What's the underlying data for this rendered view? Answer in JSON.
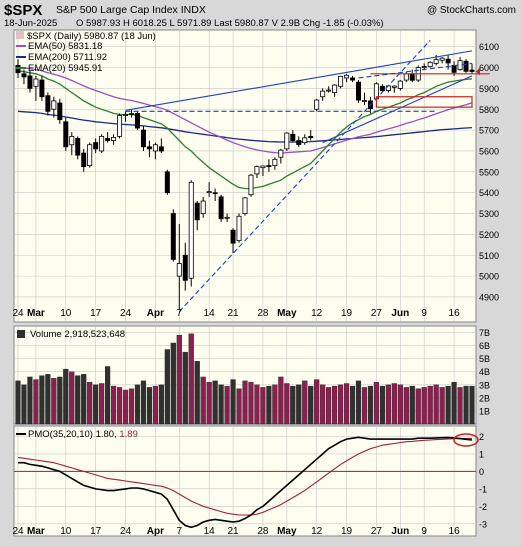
{
  "header": {
    "symbol": "$SPX",
    "name": "S&P 500 Large Cap Index",
    "exchange": "INDX",
    "watermark": "@ StockCharts.com",
    "date": "18-Jun-2025",
    "quote": "O 5987.93  H 6018.25  L 5971.89  Last 5980.87  V 2.9B  Chg -1.85 (-0.03%)"
  },
  "colors": {
    "bg": "#fdfdf0",
    "grid": "#c8c8c8",
    "up": "#000000",
    "down": "#000000",
    "ema50": "#9a4fc9",
    "ema200": "#1a2a8a",
    "ema20": "#2e7d32",
    "trend": "#1f3fbf",
    "volume_up": "#8c1f4f",
    "volume_down": "#303030",
    "pmo": "#000000",
    "signal": "#a0203a",
    "highlight": "#cc2222"
  },
  "chart_data": [
    {
      "type": "candlestick",
      "panel": "price",
      "legend": [
        {
          "key": "price",
          "label": "$SPX (Daily) 5980.87 (18 Jun)",
          "color": "#000000"
        },
        {
          "key": "ema50",
          "label": "EMA(50) 5831.18",
          "color": "#9a4fc9"
        },
        {
          "key": "ema200",
          "label": "EMA(200) 5711.92",
          "color": "#1a2a8a"
        },
        {
          "key": "ema20",
          "label": "EMA(20) 5945.91",
          "color": "#2e7d32"
        }
      ],
      "ylim": [
        4780,
        6180
      ],
      "y_ticks": [
        4900,
        5000,
        5100,
        5200,
        5300,
        5400,
        5500,
        5600,
        5700,
        5800,
        5900,
        6000,
        6100
      ],
      "last_price": 5980.87,
      "x_labels": [
        {
          "i": 0,
          "label": "24"
        },
        {
          "i": 3,
          "label": "Mar"
        },
        {
          "i": 8,
          "label": "10"
        },
        {
          "i": 13,
          "label": "17"
        },
        {
          "i": 18,
          "label": "24"
        },
        {
          "i": 23,
          "label": "Apr"
        },
        {
          "i": 27,
          "label": "7"
        },
        {
          "i": 32,
          "label": "14"
        },
        {
          "i": 36,
          "label": "21"
        },
        {
          "i": 41,
          "label": "28"
        },
        {
          "i": 45,
          "label": "May"
        },
        {
          "i": 50,
          "label": "12"
        },
        {
          "i": 55,
          "label": "19"
        },
        {
          "i": 60,
          "label": "27"
        },
        {
          "i": 64,
          "label": "Jun"
        },
        {
          "i": 68,
          "label": "9"
        },
        {
          "i": 73,
          "label": "16"
        }
      ],
      "candles": [
        {
          "o": 6010,
          "h": 6040,
          "l": 5950,
          "c": 5975
        },
        {
          "o": 5970,
          "h": 5990,
          "l": 5920,
          "c": 5955
        },
        {
          "o": 5960,
          "h": 5985,
          "l": 5880,
          "c": 5900
        },
        {
          "o": 5910,
          "h": 5960,
          "l": 5840,
          "c": 5945
        },
        {
          "o": 5940,
          "h": 5960,
          "l": 5840,
          "c": 5860
        },
        {
          "o": 5865,
          "h": 5880,
          "l": 5770,
          "c": 5790
        },
        {
          "o": 5800,
          "h": 5860,
          "l": 5760,
          "c": 5840
        },
        {
          "o": 5830,
          "h": 5850,
          "l": 5730,
          "c": 5750
        },
        {
          "o": 5740,
          "h": 5760,
          "l": 5600,
          "c": 5620
        },
        {
          "o": 5630,
          "h": 5690,
          "l": 5580,
          "c": 5670
        },
        {
          "o": 5660,
          "h": 5670,
          "l": 5560,
          "c": 5580
        },
        {
          "o": 5590,
          "h": 5610,
          "l": 5500,
          "c": 5525
        },
        {
          "o": 5530,
          "h": 5640,
          "l": 5520,
          "c": 5630
        },
        {
          "o": 5640,
          "h": 5660,
          "l": 5590,
          "c": 5610
        },
        {
          "o": 5600,
          "h": 5680,
          "l": 5590,
          "c": 5670
        },
        {
          "o": 5660,
          "h": 5690,
          "l": 5640,
          "c": 5650
        },
        {
          "o": 5650,
          "h": 5680,
          "l": 5630,
          "c": 5665
        },
        {
          "o": 5670,
          "h": 5780,
          "l": 5660,
          "c": 5770
        },
        {
          "o": 5770,
          "h": 5790,
          "l": 5740,
          "c": 5775
        },
        {
          "o": 5775,
          "h": 5800,
          "l": 5760,
          "c": 5780
        },
        {
          "o": 5780,
          "h": 5790,
          "l": 5700,
          "c": 5710
        },
        {
          "o": 5700,
          "h": 5720,
          "l": 5600,
          "c": 5620
        },
        {
          "o": 5620,
          "h": 5650,
          "l": 5570,
          "c": 5610
        },
        {
          "o": 5600,
          "h": 5640,
          "l": 5560,
          "c": 5630
        },
        {
          "o": 5620,
          "h": 5660,
          "l": 5590,
          "c": 5600
        },
        {
          "o": 5500,
          "h": 5510,
          "l": 5390,
          "c": 5400
        },
        {
          "o": 5300,
          "h": 5320,
          "l": 5070,
          "c": 5080
        },
        {
          "o": 5000,
          "h": 5250,
          "l": 4840,
          "c": 5060
        },
        {
          "o": 5100,
          "h": 5160,
          "l": 4930,
          "c": 4980
        },
        {
          "o": 4990,
          "h": 5460,
          "l": 4950,
          "c": 5450
        },
        {
          "o": 5350,
          "h": 5360,
          "l": 5220,
          "c": 5270
        },
        {
          "o": 5300,
          "h": 5380,
          "l": 5280,
          "c": 5360
        },
        {
          "o": 5400,
          "h": 5450,
          "l": 5380,
          "c": 5405
        },
        {
          "o": 5400,
          "h": 5420,
          "l": 5360,
          "c": 5395
        },
        {
          "o": 5380,
          "h": 5390,
          "l": 5260,
          "c": 5275
        },
        {
          "o": 5280,
          "h": 5300,
          "l": 5260,
          "c": 5282
        },
        {
          "o": 5220,
          "h": 5230,
          "l": 5110,
          "c": 5158
        },
        {
          "o": 5170,
          "h": 5300,
          "l": 5160,
          "c": 5287
        },
        {
          "o": 5300,
          "h": 5380,
          "l": 5290,
          "c": 5375
        },
        {
          "o": 5390,
          "h": 5490,
          "l": 5380,
          "c": 5484
        },
        {
          "o": 5490,
          "h": 5530,
          "l": 5470,
          "c": 5525
        },
        {
          "o": 5520,
          "h": 5530,
          "l": 5480,
          "c": 5528
        },
        {
          "o": 5530,
          "h": 5560,
          "l": 5500,
          "c": 5528
        },
        {
          "o": 5530,
          "h": 5570,
          "l": 5510,
          "c": 5560
        },
        {
          "o": 5570,
          "h": 5610,
          "l": 5540,
          "c": 5604
        },
        {
          "o": 5610,
          "h": 5690,
          "l": 5600,
          "c": 5686
        },
        {
          "o": 5680,
          "h": 5700,
          "l": 5640,
          "c": 5650
        },
        {
          "o": 5650,
          "h": 5670,
          "l": 5620,
          "c": 5631
        },
        {
          "o": 5640,
          "h": 5680,
          "l": 5630,
          "c": 5663
        },
        {
          "o": 5670,
          "h": 5700,
          "l": 5650,
          "c": 5664
        },
        {
          "o": 5800,
          "h": 5850,
          "l": 5790,
          "c": 5844
        },
        {
          "o": 5860,
          "h": 5900,
          "l": 5840,
          "c": 5887
        },
        {
          "o": 5890,
          "h": 5910,
          "l": 5880,
          "c": 5892
        },
        {
          "o": 5880,
          "h": 5920,
          "l": 5860,
          "c": 5916
        },
        {
          "o": 5910,
          "h": 5960,
          "l": 5900,
          "c": 5958
        },
        {
          "o": 5950,
          "h": 5970,
          "l": 5930,
          "c": 5963
        },
        {
          "o": 5950,
          "h": 5960,
          "l": 5930,
          "c": 5940
        },
        {
          "o": 5930,
          "h": 5940,
          "l": 5830,
          "c": 5844
        },
        {
          "o": 5840,
          "h": 5880,
          "l": 5820,
          "c": 5842
        },
        {
          "o": 5840,
          "h": 5860,
          "l": 5780,
          "c": 5803
        },
        {
          "o": 5850,
          "h": 5930,
          "l": 5840,
          "c": 5922
        },
        {
          "o": 5910,
          "h": 5920,
          "l": 5880,
          "c": 5889
        },
        {
          "o": 5890,
          "h": 5915,
          "l": 5880,
          "c": 5912
        },
        {
          "o": 5905,
          "h": 5915,
          "l": 5880,
          "c": 5911
        },
        {
          "o": 5900,
          "h": 5940,
          "l": 5890,
          "c": 5935
        },
        {
          "o": 5940,
          "h": 5980,
          "l": 5930,
          "c": 5970
        },
        {
          "o": 5970,
          "h": 5990,
          "l": 5930,
          "c": 5939
        },
        {
          "o": 5940,
          "h": 6010,
          "l": 5930,
          "c": 6000
        },
        {
          "o": 6000,
          "h": 6020,
          "l": 5990,
          "c": 6005
        },
        {
          "o": 6005,
          "h": 6030,
          "l": 6000,
          "c": 6025
        },
        {
          "o": 6020,
          "h": 6060,
          "l": 6010,
          "c": 6038
        },
        {
          "o": 6035,
          "h": 6050,
          "l": 6020,
          "c": 6045
        },
        {
          "o": 6040,
          "h": 6060,
          "l": 5990,
          "c": 6022
        },
        {
          "o": 6010,
          "h": 6030,
          "l": 5960,
          "c": 5977
        },
        {
          "o": 5990,
          "h": 6050,
          "l": 5985,
          "c": 6033
        },
        {
          "o": 6030,
          "h": 6040,
          "l": 5975,
          "c": 5982
        },
        {
          "o": 5988,
          "h": 6018,
          "l": 5972,
          "c": 5981
        }
      ],
      "ema20": [
        5985,
        5980,
        5975,
        5970,
        5960,
        5945,
        5935,
        5920,
        5900,
        5880,
        5860,
        5840,
        5825,
        5810,
        5800,
        5790,
        5780,
        5775,
        5775,
        5775,
        5770,
        5760,
        5750,
        5740,
        5730,
        5710,
        5680,
        5650,
        5620,
        5600,
        5570,
        5545,
        5520,
        5500,
        5480,
        5460,
        5440,
        5425,
        5420,
        5420,
        5425,
        5430,
        5440,
        5450,
        5460,
        5480,
        5495,
        5510,
        5525,
        5540,
        5570,
        5600,
        5630,
        5660,
        5690,
        5715,
        5735,
        5750,
        5765,
        5775,
        5790,
        5800,
        5810,
        5820,
        5830,
        5845,
        5855,
        5870,
        5880,
        5895,
        5910,
        5920,
        5930,
        5935,
        5940,
        5943,
        5946
      ],
      "ema50": [
        6000,
        5998,
        5995,
        5990,
        5985,
        5975,
        5968,
        5960,
        5950,
        5938,
        5925,
        5912,
        5900,
        5890,
        5880,
        5870,
        5860,
        5852,
        5847,
        5842,
        5835,
        5828,
        5820,
        5812,
        5805,
        5795,
        5780,
        5765,
        5750,
        5735,
        5720,
        5705,
        5690,
        5678,
        5665,
        5652,
        5640,
        5630,
        5620,
        5612,
        5605,
        5600,
        5595,
        5592,
        5590,
        5592,
        5594,
        5596,
        5598,
        5600,
        5608,
        5616,
        5625,
        5634,
        5643,
        5652,
        5660,
        5668,
        5674,
        5680,
        5690,
        5698,
        5706,
        5714,
        5722,
        5732,
        5740,
        5750,
        5758,
        5768,
        5778,
        5788,
        5798,
        5806,
        5814,
        5822,
        5831
      ],
      "ema200": [
        5790,
        5788,
        5786,
        5784,
        5780,
        5775,
        5772,
        5768,
        5763,
        5758,
        5753,
        5748,
        5744,
        5740,
        5737,
        5734,
        5731,
        5729,
        5727,
        5725,
        5723,
        5720,
        5717,
        5714,
        5711,
        5707,
        5702,
        5697,
        5692,
        5688,
        5684,
        5680,
        5676,
        5672,
        5668,
        5664,
        5660,
        5657,
        5654,
        5651,
        5649,
        5647,
        5645,
        5644,
        5643,
        5643,
        5643,
        5643,
        5644,
        5645,
        5647,
        5649,
        5651,
        5653,
        5655,
        5658,
        5660,
        5662,
        5664,
        5666,
        5669,
        5672,
        5675,
        5678,
        5681,
        5684,
        5687,
        5690,
        5693,
        5696,
        5699,
        5702,
        5704,
        5706,
        5708,
        5710,
        5712
      ],
      "annotations": [
        {
          "type": "trendline",
          "style": "solid",
          "from": {
            "i": 18,
            "v": 5795
          },
          "to": {
            "i": 76,
            "v": 6080
          }
        },
        {
          "type": "trendline",
          "style": "dashed",
          "from": {
            "i": 27,
            "v": 4830
          },
          "to": {
            "i": 69,
            "v": 6130
          }
        },
        {
          "type": "hline",
          "style": "dashed",
          "from": {
            "i": 18,
            "v": 5790
          },
          "to": {
            "i": 70,
            "v": 5790
          }
        },
        {
          "type": "hline",
          "style": "solid",
          "color": "highlight",
          "from": {
            "i": 59,
            "v": 5970
          },
          "to": {
            "i": 79,
            "v": 5970
          }
        },
        {
          "type": "trendline",
          "style": "dashed",
          "from": {
            "i": 57,
            "v": 5950
          },
          "to": {
            "i": 76,
            "v": 6020
          }
        },
        {
          "type": "trendline",
          "style": "solid",
          "from": {
            "i": 51,
            "v": 5640
          },
          "to": {
            "i": 76,
            "v": 5960
          }
        },
        {
          "type": "rect",
          "color": "highlight",
          "from": {
            "i": 60,
            "v": 5860
          },
          "to": {
            "i": 76,
            "v": 5810
          }
        }
      ]
    },
    {
      "type": "bar",
      "panel": "volume",
      "legend": [
        {
          "label": "Volume 2,918,523,648"
        }
      ],
      "ylim": [
        0,
        7.5
      ],
      "y_ticks": [
        {
          "v": 1,
          "label": "1B"
        },
        {
          "v": 2,
          "label": "2B"
        },
        {
          "v": 3,
          "label": "3B"
        },
        {
          "v": 4,
          "label": "4B"
        },
        {
          "v": 5,
          "label": "5B"
        },
        {
          "v": 6,
          "label": "6B"
        },
        {
          "v": 7,
          "label": "7B"
        }
      ],
      "values": [
        3.3,
        3.0,
        3.6,
        3.4,
        3.7,
        3.8,
        3.5,
        3.6,
        4.2,
        4.0,
        3.7,
        3.8,
        3.2,
        3.0,
        3.1,
        4.4,
        2.9,
        2.8,
        2.6,
        2.7,
        3.0,
        3.3,
        2.8,
        2.9,
        3.0,
        5.7,
        6.2,
        6.8,
        5.5,
        6.9,
        4.8,
        3.6,
        3.2,
        3.3,
        3.0,
        2.9,
        3.4,
        2.7,
        3.3,
        3.2,
        3.0,
        2.8,
        2.9,
        3.0,
        3.6,
        3.1,
        2.9,
        3.0,
        3.3,
        2.9,
        3.4,
        3.0,
        2.8,
        2.9,
        3.0,
        3.1,
        2.9,
        3.3,
        2.8,
        2.9,
        3.2,
        2.9,
        3.0,
        3.1,
        3.0,
        2.8,
        2.9,
        2.7,
        2.8,
        2.9,
        3.0,
        2.8,
        2.9,
        3.2,
        2.8,
        2.9,
        2.9
      ]
    },
    {
      "type": "line",
      "panel": "pmo",
      "legend": [
        {
          "key": "pmo",
          "label": "PMO(35,20,10) 1.80",
          "color": "#000000"
        },
        {
          "key": "signal",
          "label": "1.89",
          "color": "#a0203a"
        }
      ],
      "ylim": [
        -3.7,
        2.6
      ],
      "y_ticks": [
        -3,
        -2,
        -1,
        0,
        1,
        2
      ],
      "zero_line": 0,
      "pmo": [
        0.5,
        0.5,
        0.4,
        0.35,
        0.3,
        0.2,
        0.1,
        0.0,
        -0.2,
        -0.4,
        -0.6,
        -0.8,
        -0.9,
        -1.0,
        -1.05,
        -1.1,
        -1.1,
        -1.05,
        -1.0,
        -0.95,
        -0.95,
        -1.0,
        -1.1,
        -1.2,
        -1.3,
        -1.6,
        -2.2,
        -2.8,
        -3.1,
        -3.2,
        -3.1,
        -2.9,
        -2.8,
        -2.75,
        -2.8,
        -2.85,
        -2.9,
        -2.85,
        -2.7,
        -2.5,
        -2.2,
        -2.0,
        -1.7,
        -1.4,
        -1.1,
        -0.8,
        -0.5,
        -0.2,
        0.1,
        0.4,
        0.7,
        1.0,
        1.3,
        1.5,
        1.7,
        1.85,
        1.9,
        1.95,
        1.9,
        1.85,
        1.85,
        1.85,
        1.85,
        1.85,
        1.85,
        1.85,
        1.85,
        1.9,
        1.9,
        1.9,
        1.92,
        1.93,
        1.94,
        1.92,
        1.88,
        1.84,
        1.8
      ],
      "signal": [
        0.8,
        0.75,
        0.7,
        0.65,
        0.6,
        0.55,
        0.5,
        0.4,
        0.3,
        0.2,
        0.1,
        0.0,
        -0.1,
        -0.2,
        -0.3,
        -0.4,
        -0.45,
        -0.5,
        -0.55,
        -0.6,
        -0.65,
        -0.7,
        -0.75,
        -0.8,
        -0.85,
        -0.95,
        -1.1,
        -1.3,
        -1.5,
        -1.7,
        -1.85,
        -2.0,
        -2.1,
        -2.2,
        -2.3,
        -2.4,
        -2.45,
        -2.5,
        -2.5,
        -2.5,
        -2.45,
        -2.35,
        -2.2,
        -2.05,
        -1.9,
        -1.7,
        -1.5,
        -1.3,
        -1.1,
        -0.85,
        -0.6,
        -0.35,
        -0.1,
        0.15,
        0.4,
        0.6,
        0.8,
        1.0,
        1.15,
        1.3,
        1.4,
        1.5,
        1.55,
        1.6,
        1.65,
        1.7,
        1.72,
        1.75,
        1.78,
        1.8,
        1.82,
        1.84,
        1.86,
        1.87,
        1.88,
        1.88,
        1.89
      ]
    }
  ]
}
